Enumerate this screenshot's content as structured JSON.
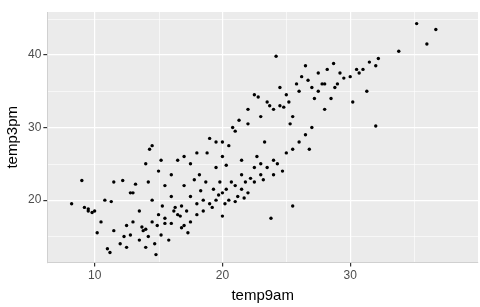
{
  "chart_data": {
    "type": "scatter",
    "x_label": "temp9am",
    "y_label": "temp3pm",
    "x": [
      8.2,
      9,
      9.2,
      9.5,
      9.8,
      9.5,
      10,
      10.2,
      10.5,
      11,
      11.2,
      11.5,
      11.3,
      11.5,
      12,
      12.2,
      12.5,
      12.8,
      12.5,
      13,
      13,
      13.2,
      13.5,
      13.8,
      13.5,
      14,
      14,
      14.2,
      14.5,
      14.5,
      14.7,
      14.8,
      14.9,
      15,
      15,
      15.2,
      15.5,
      15.5,
      15.5,
      15.8,
      16,
      16,
      16,
      14,
      14.5,
      14.3,
      15.2,
      16.2,
      16.3,
      16.5,
      16.5,
      16.7,
      16.8,
      17,
      17,
      17,
      17.2,
      17.5,
      17.5,
      17.5,
      17.8,
      18,
      18,
      18,
      18.2,
      18.5,
      18.5,
      18.7,
      18.8,
      19,
      19,
      19.2,
      19.3,
      19.5,
      19.5,
      19.5,
      19.8,
      20,
      20,
      20,
      20,
      20.2,
      20.3,
      20.5,
      20.5,
      20.7,
      20.8,
      21,
      21,
      21,
      21.2,
      21.3,
      21.5,
      21.5,
      21.5,
      21.8,
      22,
      22,
      22,
      22.2,
      22.5,
      22.5,
      22.5,
      22.8,
      23,
      23,
      23,
      23.2,
      23.5,
      23.5,
      23.7,
      23.8,
      24,
      24,
      24.2,
      24.3,
      24.5,
      24.5,
      24.7,
      24.8,
      25,
      25,
      25.2,
      25.5,
      25.5,
      25.5,
      25.8,
      26,
      26,
      26.2,
      26.5,
      26.5,
      26.7,
      26.8,
      27,
      27,
      27.2,
      27.5,
      27.5,
      27.8,
      28,
      28,
      28.2,
      28.5,
      28.7,
      28.8,
      29,
      29.2,
      29.5,
      30,
      30.2,
      30.5,
      30.7,
      31,
      31.3,
      31.5,
      32,
      32,
      32.2,
      33.8,
      35.2,
      36,
      36.7,
      10.8,
      12.3,
      13.7,
      15.3,
      16.8,
      18.3,
      19.7,
      21.7,
      17.3,
      22.7,
      14.2,
      23.3,
      12.8,
      25.3,
      24,
      20.3
    ],
    "values": [
      19.5,
      22.7,
      19,
      18.5,
      18.3,
      18.8,
      18.5,
      15.5,
      17,
      13.3,
      12.8,
      15.8,
      19.8,
      22.5,
      14,
      22.7,
      13.5,
      15.2,
      16.5,
      17,
      21,
      22.2,
      14.5,
      15.8,
      18.5,
      13.5,
      16,
      22.5,
      17,
      20,
      14,
      12.5,
      16.5,
      24,
      18,
      15.2,
      16.8,
      22,
      17.5,
      14.5,
      16.8,
      20.5,
      23.5,
      25,
      27.5,
      27,
      25.5,
      18.5,
      19,
      18,
      25.5,
      17.8,
      19.2,
      16.5,
      22,
      26,
      18.5,
      17,
      20.5,
      25,
      22.8,
      19.5,
      26.5,
      18,
      23.5,
      18.5,
      20,
      22.5,
      26.5,
      19.5,
      28.5,
      19,
      21.5,
      20,
      24.5,
      28,
      22.5,
      17.8,
      21,
      26,
      28,
      19.5,
      21.5,
      20,
      27.5,
      22.5,
      30,
      19.8,
      22,
      29.5,
      20.5,
      31,
      21.5,
      23.5,
      25.5,
      22.5,
      21,
      30.5,
      32.5,
      23,
      22.5,
      24.5,
      34.5,
      34.2,
      23.5,
      25,
      31.5,
      22.8,
      24.5,
      33.5,
      33,
      17.5,
      25.5,
      32.5,
      39.8,
      25,
      33,
      35.5,
      24,
      32.8,
      26.5,
      34.5,
      33.5,
      27,
      19.2,
      31.5,
      36,
      28,
      35,
      37,
      29,
      38.5,
      36.5,
      27,
      30,
      35.5,
      34,
      35,
      37.5,
      36,
      32.5,
      36,
      38,
      34,
      38.8,
      35.5,
      36,
      37.5,
      36.8,
      37,
      33.5,
      38,
      37.5,
      38,
      35,
      39,
      30.2,
      38.5,
      39.5,
      40.5,
      44.3,
      41.5,
      43.5,
      20,
      15,
      16.3,
      19.2,
      16.2,
      21.3,
      20.7,
      20.3,
      15.5,
      26,
      15,
      28,
      21,
      30.5,
      23.5,
      24.8
    ],
    "color": "#000000",
    "xlim": [
      6.3,
      40
    ],
    "xticks": [
      10,
      20,
      30
    ],
    "ylim": [
      11.4,
      45.9
    ],
    "yticks": [
      20,
      30,
      40
    ],
    "grid": true
  }
}
